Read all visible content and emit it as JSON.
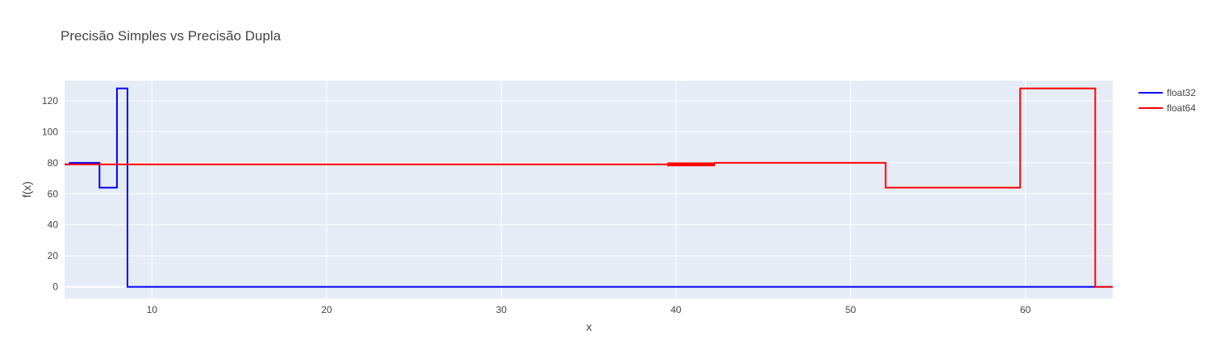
{
  "chart_data": {
    "type": "line",
    "title": "Precisão Simples vs Precisão Dupla",
    "xlabel": "x",
    "ylabel": "f(x)",
    "xlim": [
      5,
      65
    ],
    "ylim": [
      -7.5,
      133
    ],
    "xticks": [
      10,
      20,
      30,
      40,
      50,
      60
    ],
    "yticks": [
      0,
      20,
      40,
      60,
      80,
      100,
      120
    ],
    "grid": true,
    "legend": "top-right",
    "plot_background": "#E5ECF6",
    "series": [
      {
        "name": "float32",
        "color": "#0000FF",
        "line_shape": "step",
        "x": [
          5,
          5.3,
          5.3,
          7.0,
          7.0,
          8.0,
          8.0,
          8.6,
          8.6,
          65
        ],
        "y": [
          79,
          79,
          80,
          80,
          64,
          64,
          128,
          128,
          0,
          0
        ]
      },
      {
        "name": "float64",
        "color": "#FF0000",
        "line_shape": "step",
        "x": [
          5,
          39.5,
          42.2,
          42.2,
          52.0,
          52.0,
          59.7,
          59.7,
          64.0,
          64.0,
          65
        ],
        "y": [
          79,
          79,
          79,
          80,
          80,
          64,
          64,
          128,
          128,
          0,
          0
        ],
        "jitter_region": {
          "x": [
            39.5,
            42.2
          ],
          "y": [
            78.3,
            79.7
          ]
        }
      }
    ]
  }
}
